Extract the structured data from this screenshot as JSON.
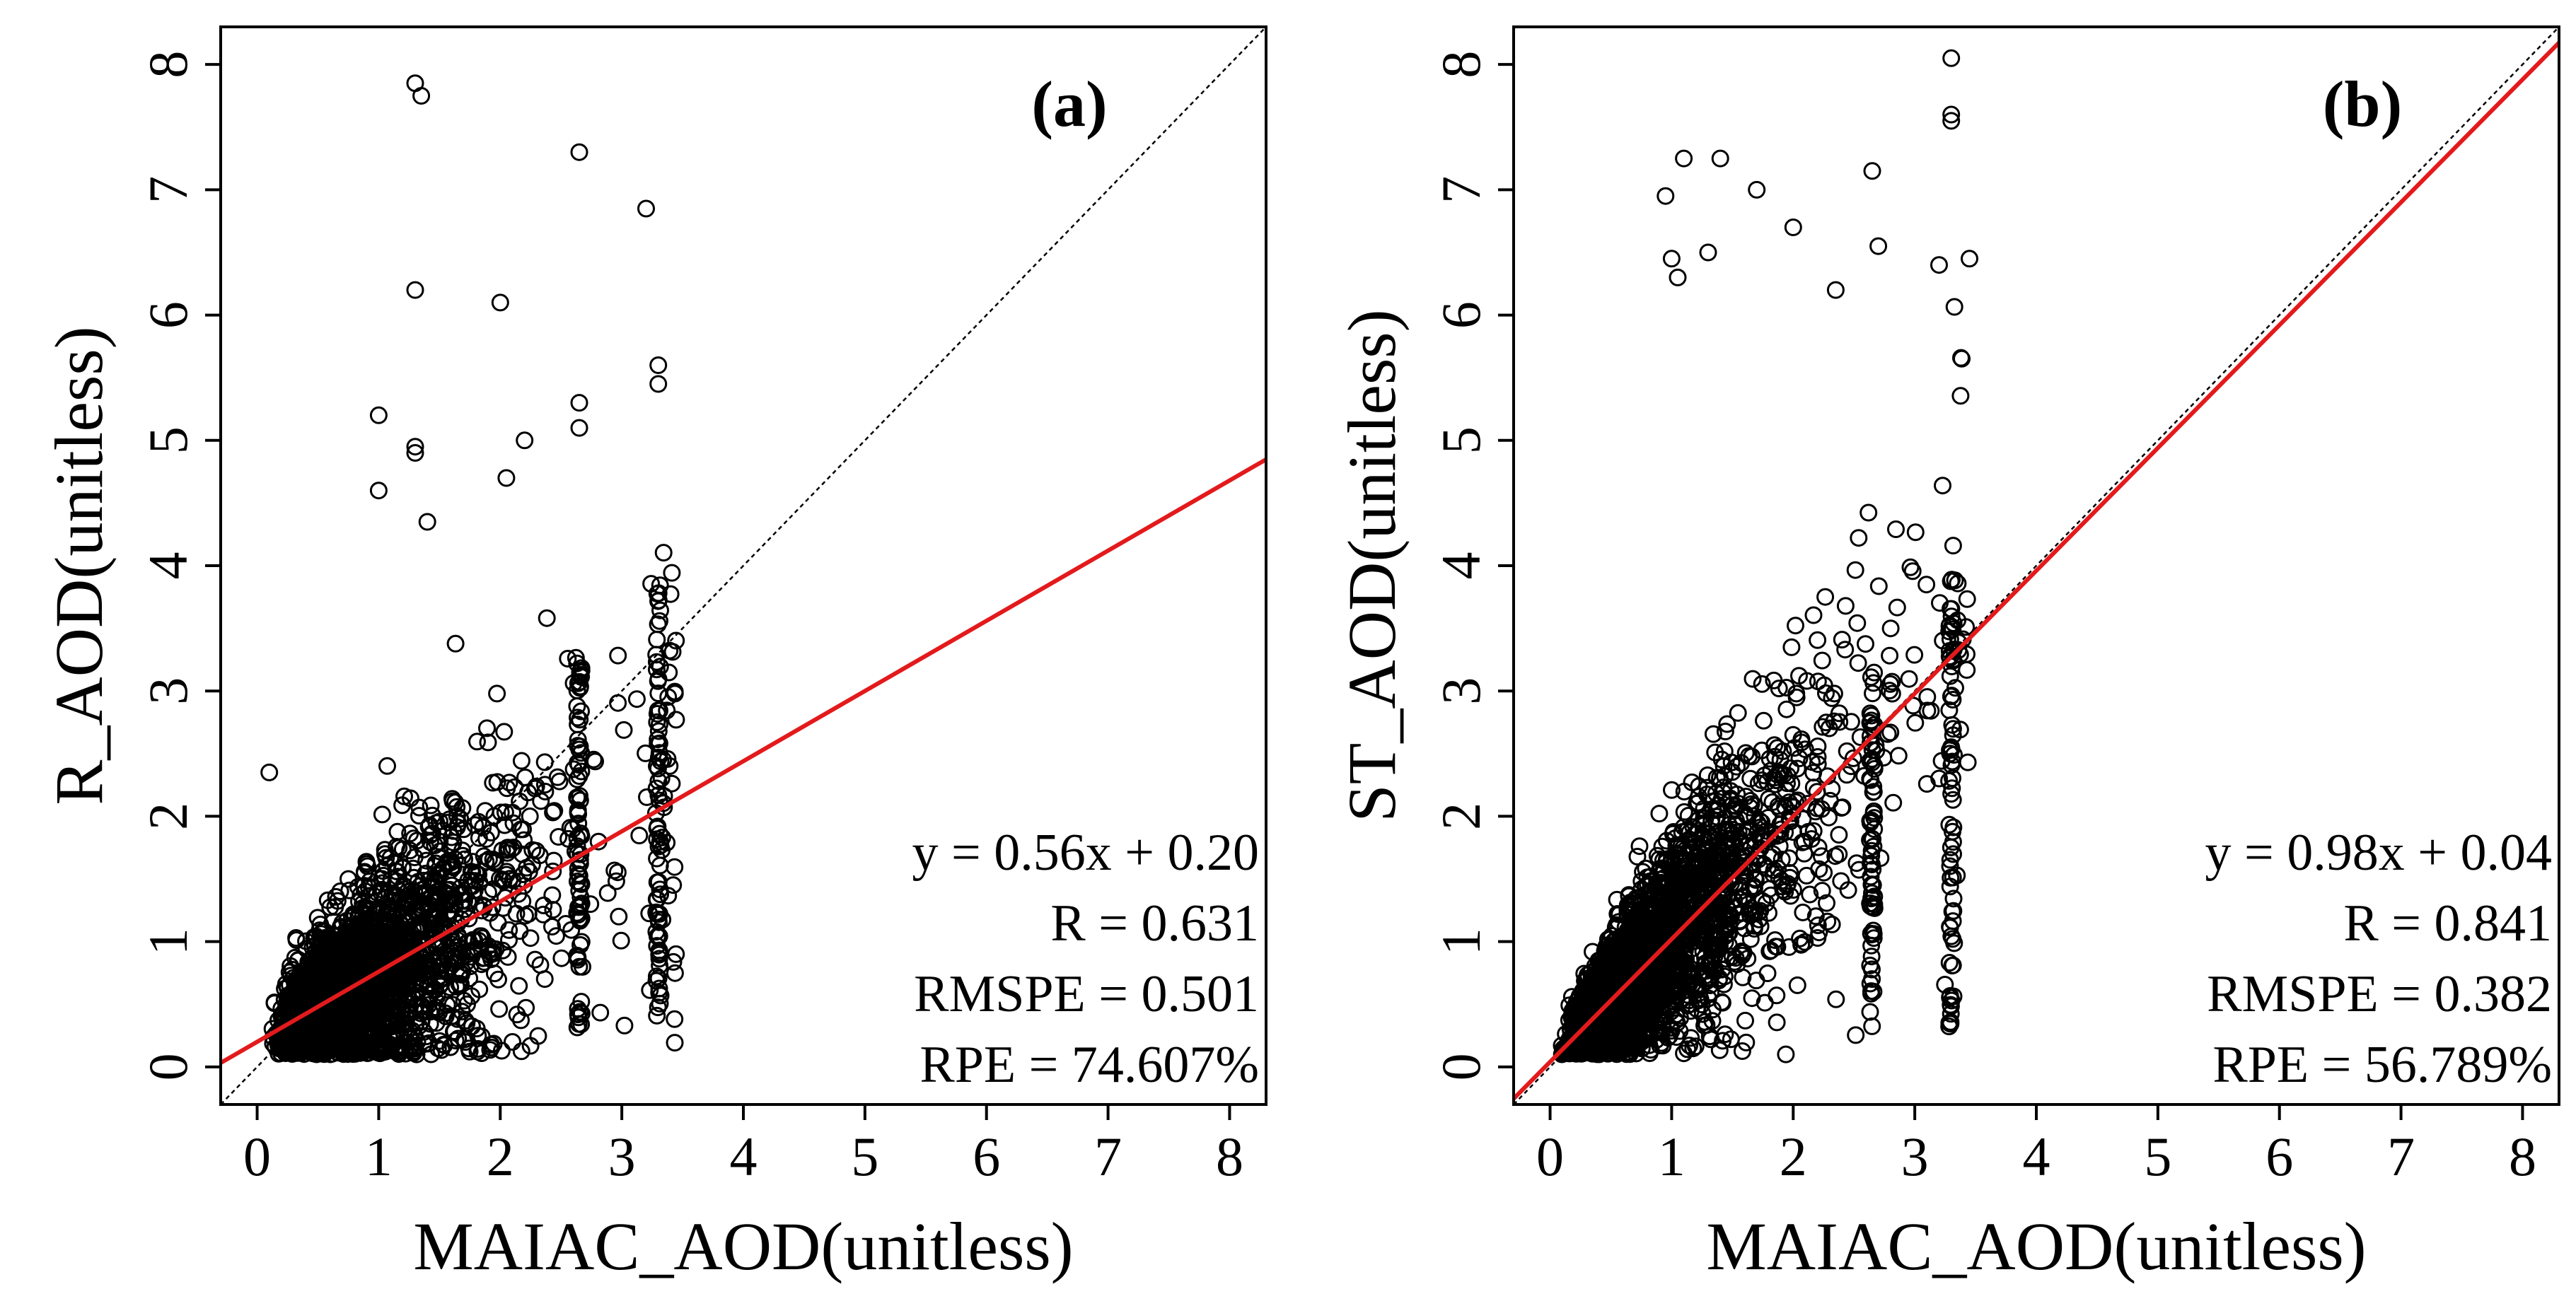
{
  "colors": {
    "fit_line": "#e31a1c",
    "points": "#000000",
    "identity_line": "#000000",
    "background": "#ffffff"
  },
  "chart_data": [
    {
      "type": "scatter",
      "panel_label": "(a)",
      "xlabel": "MAIAC_AOD(unitless)",
      "ylabel": "R_AOD(unitless)",
      "xlim": [
        -0.3,
        8.3
      ],
      "ylim": [
        -0.3,
        8.3
      ],
      "xticks": [
        "0",
        "1",
        "2",
        "3",
        "4",
        "5",
        "6",
        "7",
        "8"
      ],
      "yticks": [
        "0",
        "1",
        "2",
        "3",
        "4",
        "5",
        "6",
        "7",
        "8"
      ],
      "fit": {
        "slope": 0.56,
        "intercept": 0.2,
        "color": "#e31a1c"
      },
      "identity_line": true,
      "stats": [
        "y = 0.56x + 0.20",
        "R = 0.631",
        "RMSPE = 0.501",
        "RPE = 74.607%"
      ],
      "point_cloud": {
        "n": 2600,
        "x_mode": 0.8,
        "slope": 0.56,
        "intercept": 0.2,
        "cap_x": 3.3
      },
      "outliers": [
        [
          1.3,
          7.85
        ],
        [
          1.35,
          7.75
        ],
        [
          2.65,
          7.3
        ],
        [
          3.2,
          6.85
        ],
        [
          1.3,
          6.2
        ],
        [
          2.0,
          6.1
        ],
        [
          3.3,
          5.6
        ],
        [
          3.3,
          5.45
        ],
        [
          2.65,
          5.3
        ],
        [
          2.65,
          5.1
        ],
        [
          1.0,
          5.2
        ],
        [
          1.3,
          4.95
        ],
        [
          1.3,
          4.9
        ],
        [
          0.1,
          2.35
        ],
        [
          2.2,
          5.0
        ],
        [
          2.05,
          4.7
        ],
        [
          1.4,
          4.35
        ],
        [
          1.0,
          4.6
        ]
      ]
    },
    {
      "type": "scatter",
      "panel_label": "(b)",
      "xlabel": "MAIAC_AOD(unitless)",
      "ylabel": "ST_AOD(unitless)",
      "xlim": [
        -0.3,
        8.3
      ],
      "ylim": [
        -0.3,
        8.3
      ],
      "xticks": [
        "0",
        "1",
        "2",
        "3",
        "4",
        "5",
        "6",
        "7",
        "8"
      ],
      "yticks": [
        "0",
        "1",
        "2",
        "3",
        "4",
        "5",
        "6",
        "7",
        "8"
      ],
      "fit": {
        "slope": 0.98,
        "intercept": 0.04,
        "color": "#e31a1c"
      },
      "identity_line": true,
      "stats": [
        "y = 0.98x + 0.04",
        "R = 0.841",
        "RMSPE = 0.382",
        "RPE = 56.789%"
      ],
      "point_cloud": {
        "n": 2600,
        "x_mode": 0.8,
        "slope": 0.98,
        "intercept": 0.04,
        "cap_x": 3.3
      },
      "outliers": [
        [
          3.3,
          8.05
        ],
        [
          3.3,
          7.6
        ],
        [
          3.3,
          7.55
        ],
        [
          1.1,
          7.25
        ],
        [
          1.4,
          7.25
        ],
        [
          0.95,
          6.95
        ],
        [
          1.7,
          7.0
        ],
        [
          2.65,
          7.15
        ],
        [
          1.0,
          6.45
        ],
        [
          1.05,
          6.3
        ],
        [
          1.3,
          6.5
        ],
        [
          2.0,
          6.7
        ],
        [
          3.2,
          6.4
        ],
        [
          3.45,
          6.45
        ],
        [
          2.35,
          6.2
        ],
        [
          2.7,
          6.55
        ]
      ]
    }
  ]
}
